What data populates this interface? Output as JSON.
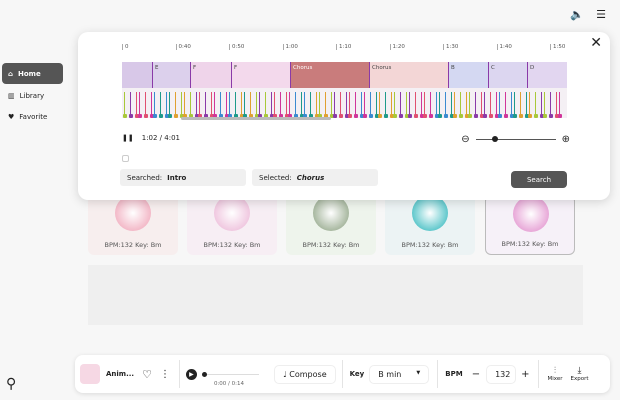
{
  "sidebar": {
    "items": [
      {
        "label": "Home",
        "icon": "home-icon",
        "active": true
      },
      {
        "label": "Library",
        "icon": "library-icon"
      },
      {
        "label": "Favorite",
        "icon": "heart-icon"
      }
    ]
  },
  "top": {
    "icons": [
      "volume-icon",
      "menu-icon"
    ]
  },
  "timeline": {
    "ticks": [
      "0",
      "0:40",
      "0:50",
      "1:00",
      "1:10",
      "1:20",
      "1:30",
      "1:40",
      "1:50"
    ],
    "sections": [
      {
        "label": "",
        "color": "#d8c8e8"
      },
      {
        "label": "E",
        "color": "#dcd0ec"
      },
      {
        "label": "F",
        "color": "#efd4ea"
      },
      {
        "label": "F",
        "color": "#f3d9ec"
      },
      {
        "label": "Chorus",
        "color": "#c97c7c"
      },
      {
        "label": "Chorus",
        "color": "#f3d6d6"
      },
      {
        "label": "B",
        "color": "#d4d8f2"
      },
      {
        "label": "C",
        "color": "#dcd6f0"
      },
      {
        "label": "D",
        "color": "#e2d6f0"
      }
    ],
    "chord_colors": [
      "#a8c838",
      "#1e9a8a",
      "#d0359a",
      "#8a3aa8",
      "#e0a030",
      "#3a8ad0",
      "#e05070"
    ],
    "time": "1:02 / 4:01",
    "zoom_level": 0.2
  },
  "search": {
    "searched_label": "Searched:",
    "searched_value": "Intro",
    "selected_label": "Selected:",
    "selected_value": "Chorus",
    "button": "Search"
  },
  "cards": [
    {
      "label": "BPM:132 Key: Bm",
      "bg": "#f7eeee",
      "orb": "#f3b9c8"
    },
    {
      "label": "BPM:132 Key: Bm",
      "bg": "#f7eef4",
      "orb": "#f0c8e0"
    },
    {
      "label": "BPM:132 Key: Bm",
      "bg": "#eef4ec",
      "orb": "#a8b8a0"
    },
    {
      "label": "BPM:132 Key: Bm",
      "bg": "#ecf3f4",
      "orb": "#60c8cc"
    },
    {
      "label": "BPM:132 Key: Bm",
      "bg": "#f6f1f8",
      "orb": "#e8a8d8"
    }
  ],
  "player": {
    "title": "Anim...",
    "time": "0:00 / 0:14",
    "compose": "Compose",
    "key_label": "Key",
    "key_value": "B min",
    "bpm_label": "BPM",
    "bpm_value": "132",
    "mixer": "Mixer",
    "export": "Export"
  }
}
